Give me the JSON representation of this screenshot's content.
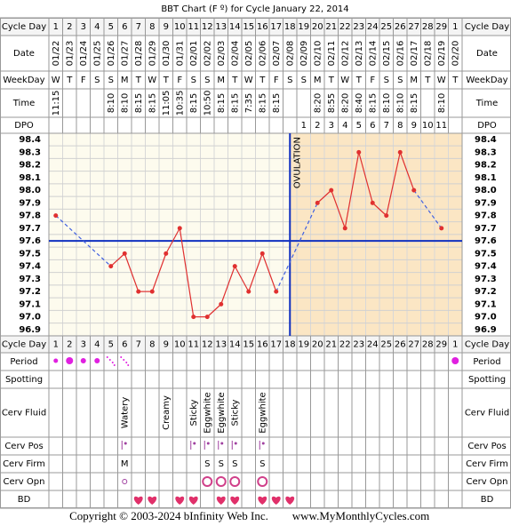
{
  "chart_data": {
    "type": "line",
    "title": "BBT Chart (F º) for Cycle January 22, 2014",
    "row_labels": {
      "cycle_day": "Cycle Day",
      "date": "Date",
      "weekday": "WeekDay",
      "time": "Time",
      "dpo": "DPO",
      "period": "Period",
      "spotting": "Spotting",
      "cerv_fluid": "Cerv Fluid",
      "cerv_pos": "Cerv Pos",
      "cerv_firm": "Cerv Firm",
      "cerv_opn": "Cerv Opn",
      "bd": "BD"
    },
    "categories": [
      "1",
      "2",
      "3",
      "4",
      "5",
      "6",
      "7",
      "8",
      "9",
      "10",
      "11",
      "12",
      "13",
      "14",
      "15",
      "16",
      "17",
      "18",
      "19",
      "20",
      "21",
      "22",
      "23",
      "24",
      "25",
      "26",
      "27",
      "28",
      "29",
      "1"
    ],
    "dates": [
      "01/22",
      "01/23",
      "01/24",
      "01/25",
      "01/26",
      "01/27",
      "01/28",
      "01/29",
      "01/30",
      "01/31",
      "02/01",
      "02/02",
      "02/03",
      "02/04",
      "02/05",
      "02/06",
      "02/07",
      "02/08",
      "02/09",
      "02/10",
      "02/11",
      "02/12",
      "02/13",
      "02/14",
      "02/15",
      "02/16",
      "02/17",
      "02/18",
      "02/19",
      "02/20"
    ],
    "weekdays": [
      "W",
      "T",
      "F",
      "S",
      "S",
      "M",
      "T",
      "W",
      "T",
      "F",
      "S",
      "S",
      "M",
      "T",
      "W",
      "T",
      "F",
      "S",
      "S",
      "M",
      "T",
      "W",
      "T",
      "F",
      "S",
      "S",
      "M",
      "T",
      "W",
      "T"
    ],
    "times": [
      "11:15",
      null,
      null,
      null,
      "8:10",
      "8:10",
      "8:15",
      "8:15",
      "11:05",
      "10:35",
      "8:15",
      "10:50",
      "8:15",
      "8:15",
      "7:35",
      "8:15",
      "8:15",
      null,
      null,
      "8:20",
      "8:55",
      "8:20",
      "8:40",
      "8:15",
      "8:10",
      "8:10",
      "8:15",
      null,
      "8:10",
      null
    ],
    "dpo": [
      null,
      null,
      null,
      null,
      null,
      null,
      null,
      null,
      null,
      null,
      null,
      null,
      null,
      null,
      null,
      null,
      null,
      null,
      "1",
      "2",
      "3",
      "4",
      "5",
      "6",
      "7",
      "8",
      "9",
      "10",
      "11",
      null
    ],
    "values": [
      97.8,
      null,
      null,
      null,
      97.4,
      97.5,
      97.2,
      97.2,
      97.5,
      97.7,
      97.0,
      97.0,
      97.1,
      97.4,
      97.2,
      97.5,
      97.2,
      null,
      null,
      97.9,
      98.0,
      97.7,
      98.3,
      97.9,
      97.8,
      98.3,
      98.0,
      null,
      97.7,
      null
    ],
    "color": "#e03030",
    "coverline": 97.6,
    "ovulation_label": "OVULATION",
    "ovulation_day": 18,
    "ylim": [
      96.85,
      98.45
    ],
    "yticks": [
      98.4,
      98.3,
      98.2,
      98.1,
      {
        "value": 98.0,
        "label": "98.0"
      },
      97.9,
      97.8,
      97.7,
      97.6,
      97.5,
      97.4,
      97.3,
      97.2,
      97.1,
      {
        "value": 97.0,
        "label": "97.0"
      },
      96.9
    ],
    "cerv_fluid": [
      null,
      null,
      null,
      null,
      null,
      "Watery",
      null,
      null,
      "Creamy",
      null,
      "Sticky",
      "Eggwhite",
      "Eggwhite",
      "Sticky",
      null,
      "Eggwhite",
      null,
      null,
      null,
      null,
      null,
      null,
      null,
      null,
      null,
      null,
      null,
      null,
      null,
      null
    ],
    "cerv_firm": [
      null,
      null,
      null,
      null,
      null,
      "M",
      null,
      null,
      null,
      null,
      null,
      "S",
      "S",
      "S",
      null,
      "S",
      null,
      null,
      null,
      null,
      null,
      null,
      null,
      null,
      null,
      null,
      null,
      null,
      null,
      null
    ]
  },
  "footer": {
    "copyright": "Copyright © 2003-2024 bInfinity Web Inc.",
    "url": "www.MyMonthlyCycles.com"
  }
}
